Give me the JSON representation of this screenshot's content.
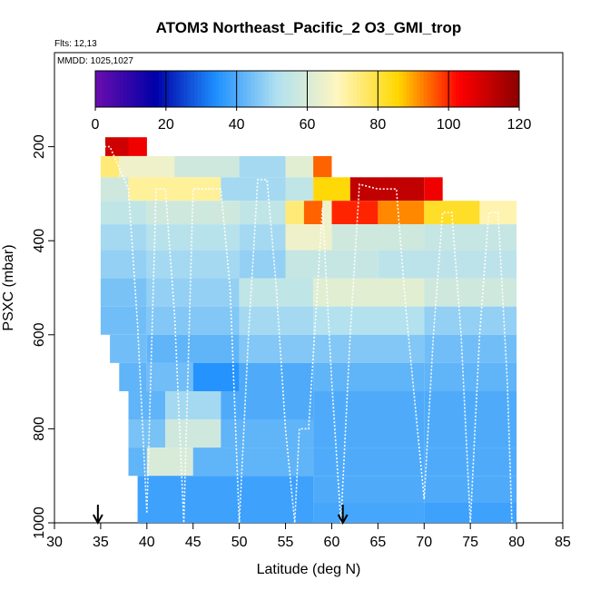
{
  "chart_data": {
    "type": "heatmap",
    "title": "ATOM3 Northeast_Pacific_2 O3_GMI_trop",
    "flights_note": "Flts: 12,13",
    "mmdd_note": "MMDD: 1025,1027",
    "xlabel": "Latitude (deg N)",
    "ylabel": "PSXC (mbar)",
    "xlim": [
      30,
      85
    ],
    "ylim": [
      1000,
      0
    ],
    "x_ticks": [
      "30",
      "35",
      "40",
      "45",
      "50",
      "55",
      "60",
      "65",
      "70",
      "75",
      "80",
      "85"
    ],
    "y_ticks": [
      "200",
      "400",
      "600",
      "800",
      "1000"
    ],
    "colorbar": {
      "min": 0,
      "max": 120,
      "ticks": [
        "0",
        "20",
        "40",
        "60",
        "80",
        "100",
        "120"
      ],
      "colors": [
        "#6a0dad",
        "#0000a8",
        "#1e90ff",
        "#b0e0f0",
        "#fff6c0",
        "#ffd700",
        "#ff0000",
        "#8b0000"
      ]
    },
    "arrows_lat": [
      34.7,
      61.2
    ],
    "o3_field": [
      {
        "p": 200,
        "bands": [
          [
            35.5,
            38,
            110
          ],
          [
            38,
            40,
            105
          ]
        ]
      },
      {
        "p": 240,
        "bands": [
          [
            35,
            37,
            75
          ],
          [
            37,
            43,
            65
          ],
          [
            43,
            50,
            58
          ],
          [
            50,
            55,
            50
          ],
          [
            55,
            58,
            62
          ],
          [
            58,
            60,
            95
          ]
        ]
      },
      {
        "p": 290,
        "bands": [
          [
            35,
            38,
            58
          ],
          [
            38,
            48,
            72
          ],
          [
            48,
            55,
            50
          ],
          [
            55,
            58,
            55
          ],
          [
            58,
            62,
            85
          ],
          [
            62,
            70,
            112
          ],
          [
            70,
            72,
            105
          ]
        ]
      },
      {
        "p": 340,
        "bands": [
          [
            35,
            40,
            55
          ],
          [
            40,
            50,
            58
          ],
          [
            50,
            55,
            55
          ],
          [
            55,
            57,
            75
          ],
          [
            57,
            59,
            95
          ],
          [
            59,
            60,
            65
          ],
          [
            60,
            65,
            100
          ],
          [
            65,
            70,
            92
          ],
          [
            70,
            76,
            82
          ],
          [
            76,
            80,
            70
          ]
        ]
      },
      {
        "p": 390,
        "bands": [
          [
            35,
            40,
            50
          ],
          [
            40,
            50,
            53
          ],
          [
            50,
            55,
            50
          ],
          [
            55,
            60,
            65
          ],
          [
            60,
            70,
            58
          ],
          [
            70,
            80,
            56
          ]
        ]
      },
      {
        "p": 450,
        "bands": [
          [
            35,
            40,
            48
          ],
          [
            40,
            50,
            50
          ],
          [
            50,
            55,
            48
          ],
          [
            55,
            65,
            56
          ],
          [
            65,
            80,
            54
          ]
        ]
      },
      {
        "p": 510,
        "bands": [
          [
            35,
            40,
            45
          ],
          [
            40,
            50,
            48
          ],
          [
            50,
            58,
            55
          ],
          [
            58,
            70,
            62
          ],
          [
            70,
            80,
            58
          ]
        ]
      },
      {
        "p": 570,
        "bands": [
          [
            35,
            40,
            44
          ],
          [
            40,
            50,
            46
          ],
          [
            50,
            58,
            50
          ],
          [
            58,
            70,
            52
          ],
          [
            70,
            80,
            48
          ]
        ]
      },
      {
        "p": 630,
        "bands": [
          [
            36,
            40,
            44
          ],
          [
            40,
            50,
            42
          ],
          [
            50,
            58,
            46
          ],
          [
            58,
            70,
            46
          ],
          [
            70,
            80,
            44
          ]
        ]
      },
      {
        "p": 690,
        "bands": [
          [
            37,
            40,
            42
          ],
          [
            40,
            45,
            44
          ],
          [
            45,
            50,
            35
          ],
          [
            50,
            58,
            40
          ],
          [
            58,
            70,
            42
          ],
          [
            70,
            80,
            42
          ]
        ]
      },
      {
        "p": 750,
        "bands": [
          [
            38,
            42,
            42
          ],
          [
            42,
            48,
            50
          ],
          [
            48,
            58,
            40
          ],
          [
            58,
            70,
            40
          ],
          [
            70,
            80,
            40
          ]
        ]
      },
      {
        "p": 810,
        "bands": [
          [
            38,
            42,
            45
          ],
          [
            42,
            48,
            58
          ],
          [
            48,
            58,
            42
          ],
          [
            58,
            70,
            40
          ],
          [
            70,
            80,
            40
          ]
        ]
      },
      {
        "p": 870,
        "bands": [
          [
            38,
            40,
            42
          ],
          [
            40,
            45,
            60
          ],
          [
            45,
            58,
            42
          ],
          [
            58,
            70,
            40
          ],
          [
            70,
            80,
            40
          ]
        ]
      },
      {
        "p": 930,
        "bands": [
          [
            39,
            58,
            38
          ],
          [
            58,
            70,
            40
          ],
          [
            70,
            80,
            40
          ]
        ]
      },
      {
        "p": 985,
        "bands": [
          [
            39,
            58,
            38
          ],
          [
            58,
            70,
            39
          ],
          [
            70,
            80,
            38
          ]
        ]
      }
    ],
    "flight_path": [
      [
        35,
        200
      ],
      [
        36,
        200
      ],
      [
        38,
        290
      ],
      [
        39,
        580
      ],
      [
        40,
        980
      ],
      [
        41,
        290
      ],
      [
        42,
        290
      ],
      [
        43,
        560
      ],
      [
        44,
        1000
      ],
      [
        45,
        290
      ],
      [
        46,
        290
      ],
      [
        48,
        290
      ],
      [
        49,
        500
      ],
      [
        50,
        1000
      ],
      [
        51,
        600
      ],
      [
        52,
        270
      ],
      [
        53,
        270
      ],
      [
        54,
        500
      ],
      [
        55,
        800
      ],
      [
        56,
        1000
      ],
      [
        56.5,
        800
      ],
      [
        57,
        800
      ],
      [
        57.5,
        800
      ],
      [
        59,
        330
      ],
      [
        60,
        700
      ],
      [
        61,
        1000
      ],
      [
        62,
        600
      ],
      [
        63,
        280
      ],
      [
        65,
        290
      ],
      [
        67,
        290
      ],
      [
        68,
        540
      ],
      [
        70,
        950
      ],
      [
        71,
        600
      ],
      [
        72,
        340
      ],
      [
        73,
        340
      ],
      [
        74,
        600
      ],
      [
        75,
        1000
      ],
      [
        76,
        600
      ],
      [
        77,
        340
      ],
      [
        78,
        340
      ],
      [
        79,
        700
      ],
      [
        79.5,
        1000
      ]
    ]
  }
}
